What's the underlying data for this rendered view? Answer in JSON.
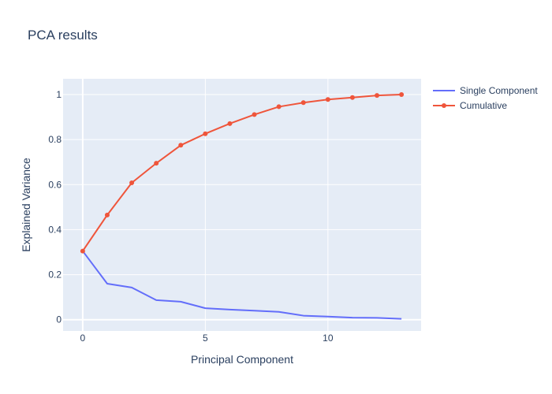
{
  "chart_data": {
    "type": "line",
    "title": "PCA results",
    "xlabel": "Principal Component",
    "ylabel": "Explained Variance",
    "xlim": [
      -0.8,
      13.8
    ],
    "ylim": [
      -0.05,
      1.07
    ],
    "xticks": [
      0,
      5,
      10
    ],
    "xtick_labels": [
      "0",
      "5",
      "10"
    ],
    "yticks": [
      0,
      0.2,
      0.4,
      0.6,
      0.8,
      1
    ],
    "ytick_labels": [
      "0",
      "0.2",
      "0.4",
      "0.6",
      "0.8",
      "1"
    ],
    "grid": true,
    "legend_position": "top-right",
    "x": [
      0,
      1,
      2,
      3,
      4,
      5,
      6,
      7,
      8,
      9,
      10,
      11,
      12,
      13
    ],
    "series": [
      {
        "name": "Single Component",
        "color": "#636efa",
        "markers": false,
        "values": [
          0.305,
          0.16,
          0.143,
          0.087,
          0.08,
          0.051,
          0.045,
          0.04,
          0.035,
          0.018,
          0.014,
          0.009,
          0.008,
          0.004
        ]
      },
      {
        "name": "Cumulative",
        "color": "#ef553b",
        "markers": true,
        "values": [
          0.305,
          0.465,
          0.608,
          0.695,
          0.775,
          0.826,
          0.871,
          0.911,
          0.946,
          0.964,
          0.978,
          0.987,
          0.996,
          1.0
        ]
      }
    ]
  }
}
